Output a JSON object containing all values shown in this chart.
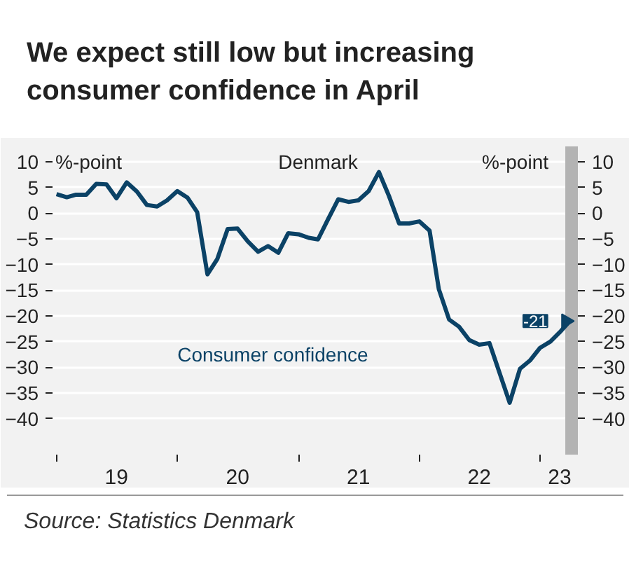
{
  "chart_data": {
    "type": "line",
    "title": "We expect still low but increasing consumer confidence in April",
    "ylabel": "%-point",
    "y2label": "%-point",
    "x": [
      "2019-01",
      "2019-02",
      "2019-03",
      "2019-04",
      "2019-05",
      "2019-06",
      "2019-07",
      "2019-08",
      "2019-09",
      "2019-10",
      "2019-11",
      "2019-12",
      "2020-01",
      "2020-02",
      "2020-03",
      "2020-04",
      "2020-05",
      "2020-06",
      "2020-07",
      "2020-08",
      "2020-09",
      "2020-10",
      "2020-11",
      "2020-12",
      "2021-01",
      "2021-02",
      "2021-03",
      "2021-04",
      "2021-05",
      "2021-06",
      "2021-07",
      "2021-08",
      "2021-09",
      "2021-10",
      "2021-11",
      "2021-12",
      "2022-01",
      "2022-02",
      "2022-03",
      "2022-04",
      "2022-05",
      "2022-06",
      "2022-07",
      "2022-08",
      "2022-09",
      "2022-10",
      "2022-11",
      "2022-12",
      "2023-01",
      "2023-02",
      "2023-03",
      "2023-04"
    ],
    "series": [
      {
        "name": "Consumer confidence",
        "color": "#0b4266",
        "values": [
          3.7,
          3.1,
          3.6,
          3.6,
          5.7,
          5.6,
          2.9,
          6.0,
          4.2,
          1.6,
          1.3,
          2.5,
          4.3,
          3.0,
          0.2,
          -11.9,
          -8.9,
          -3.1,
          -3.0,
          -5.5,
          -7.5,
          -6.4,
          -7.7,
          -3.9,
          -4.1,
          -4.8,
          -5.1,
          -1.1,
          2.7,
          2.2,
          2.5,
          4.3,
          8.0,
          3.4,
          -2.0,
          -2.0,
          -1.6,
          -3.4,
          -14.8,
          -20.7,
          -22.1,
          -24.7,
          -25.6,
          -25.3,
          -31.2,
          -36.9,
          -30.3,
          -28.7,
          -26.2,
          -25.0,
          -23.2,
          -21.0
        ],
        "value_labels": [
          null,
          null,
          null,
          null,
          null,
          null,
          null,
          null,
          null,
          null,
          null,
          null,
          null,
          null,
          null,
          null,
          null,
          null,
          null,
          null,
          null,
          null,
          null,
          null,
          null,
          null,
          null,
          null,
          null,
          null,
          null,
          null,
          null,
          null,
          null,
          null,
          null,
          null,
          null,
          null,
          null,
          null,
          null,
          null,
          null,
          null,
          null,
          null,
          null,
          null,
          null,
          "-21"
        ]
      }
    ],
    "xlim": [
      "2018-12-20",
      "2023-04-25"
    ],
    "xticks": [
      {
        "value": "2019-01",
        "label": null
      },
      {
        "value": "2020-01",
        "label": null
      },
      {
        "value": "2021-01",
        "label": null
      },
      {
        "value": "2022-01",
        "label": null
      },
      {
        "value": "2023-01",
        "label": null
      },
      {
        "value": "2019-07",
        "label": "19"
      },
      {
        "value": "2020-07",
        "label": "20"
      },
      {
        "value": "2021-07",
        "label": "21"
      },
      {
        "value": "2022-07",
        "label": "22"
      },
      {
        "value": "2023-03",
        "label": "23"
      }
    ],
    "ylim": [
      -47,
      13
    ],
    "yticks": [
      -40,
      -35,
      -30,
      -25,
      -20,
      -15,
      -10,
      -5,
      0,
      5,
      10
    ],
    "y2lim": [
      -47,
      13
    ],
    "y2ticks": [
      -40,
      -35,
      -30,
      -25,
      -20,
      -15,
      -10,
      -5,
      0,
      5,
      10
    ],
    "bands": [
      {
        "axis": "x",
        "from": "2023-03-18",
        "to": "2023-04-25",
        "color": "#b3b3b3"
      }
    ],
    "annotations": [
      "Denmark",
      "Source:  Statistics Denmark"
    ],
    "grid": "y"
  }
}
